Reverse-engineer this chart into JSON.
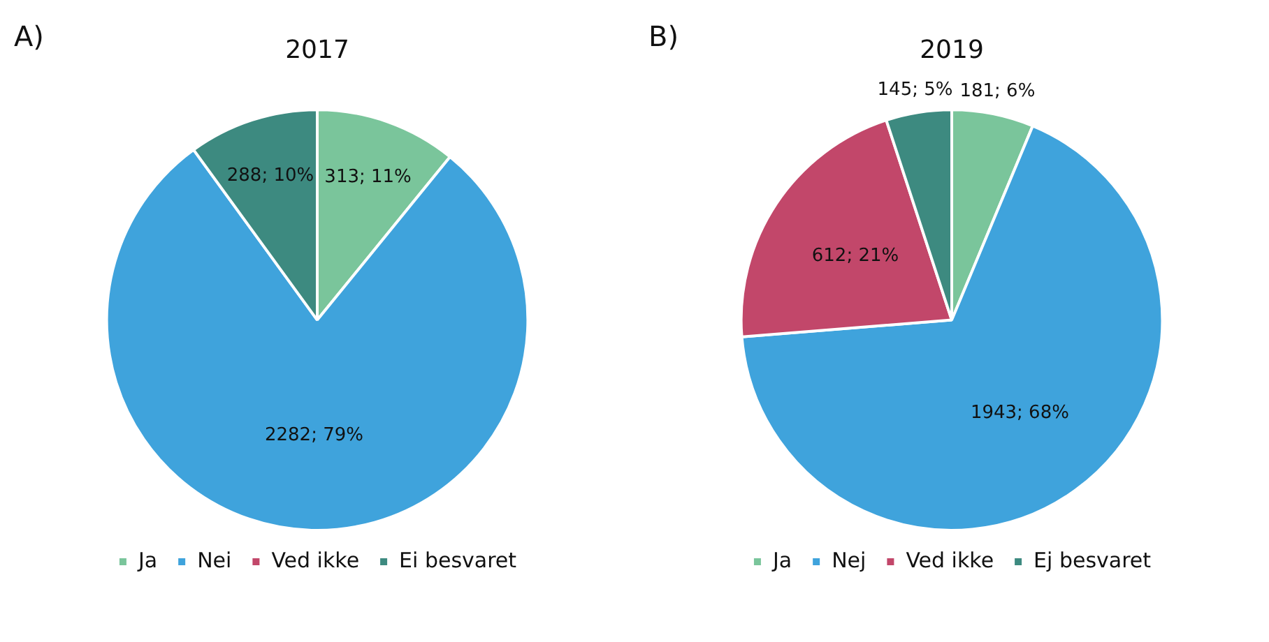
{
  "chart_data": [
    {
      "type": "pie",
      "title": "2017",
      "annotations": [
        "A)"
      ],
      "categories": [
        "Ja",
        "Nei",
        "Ved ikke",
        "Ei besvaret"
      ],
      "values": [
        313,
        2282,
        0,
        288
      ],
      "colors": [
        "#7ac59b",
        "#3fa3dc",
        "#c2476a",
        "#3d8a80"
      ],
      "value_labels": [
        "313; 11%",
        "2282; 79%",
        null,
        "288; 10%"
      ],
      "legend": "bottom"
    },
    {
      "type": "pie",
      "title": "2019",
      "annotations": [
        "B)"
      ],
      "categories": [
        "Ja",
        "Nej",
        "Ved ikke",
        "Ej besvaret"
      ],
      "values": [
        181,
        1943,
        612,
        145
      ],
      "colors": [
        "#7ac59b",
        "#3fa3dc",
        "#c2476a",
        "#3d8a80"
      ],
      "value_labels": [
        "181; 6%",
        "1943; 68%",
        "612; 21%",
        "145; 5%"
      ],
      "legend": "bottom"
    }
  ]
}
